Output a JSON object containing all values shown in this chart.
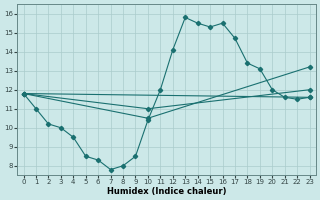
{
  "xlabel": "Humidex (Indice chaleur)",
  "ylabel": "",
  "bg_color": "#cce8e8",
  "grid_color": "#aacccc",
  "line_color": "#1a7070",
  "xlim": [
    -0.5,
    23.5
  ],
  "ylim": [
    7.5,
    16.5
  ],
  "xticks": [
    0,
    1,
    2,
    3,
    4,
    5,
    6,
    7,
    8,
    9,
    10,
    11,
    12,
    13,
    14,
    15,
    16,
    17,
    18,
    19,
    20,
    21,
    22,
    23
  ],
  "yticks": [
    8,
    9,
    10,
    11,
    12,
    13,
    14,
    15,
    16
  ],
  "line1_x": [
    0,
    1,
    2,
    3,
    4,
    5,
    6,
    7,
    8,
    9,
    10,
    11,
    12,
    13,
    14,
    15,
    16,
    17,
    18,
    19,
    20,
    21,
    22,
    23
  ],
  "line1_y": [
    11.8,
    11.0,
    10.2,
    10.0,
    9.5,
    8.5,
    8.3,
    7.8,
    8.0,
    8.5,
    10.4,
    12.0,
    14.1,
    15.8,
    15.5,
    15.3,
    15.5,
    14.7,
    13.4,
    13.1,
    12.0,
    11.6,
    11.5,
    11.6
  ],
  "line2_x": [
    0,
    23
  ],
  "line2_y": [
    11.8,
    11.6
  ],
  "line3_x": [
    0,
    10,
    23
  ],
  "line3_y": [
    11.8,
    10.5,
    13.2
  ],
  "line4_x": [
    0,
    10,
    23
  ],
  "line4_y": [
    11.8,
    11.0,
    12.0
  ]
}
